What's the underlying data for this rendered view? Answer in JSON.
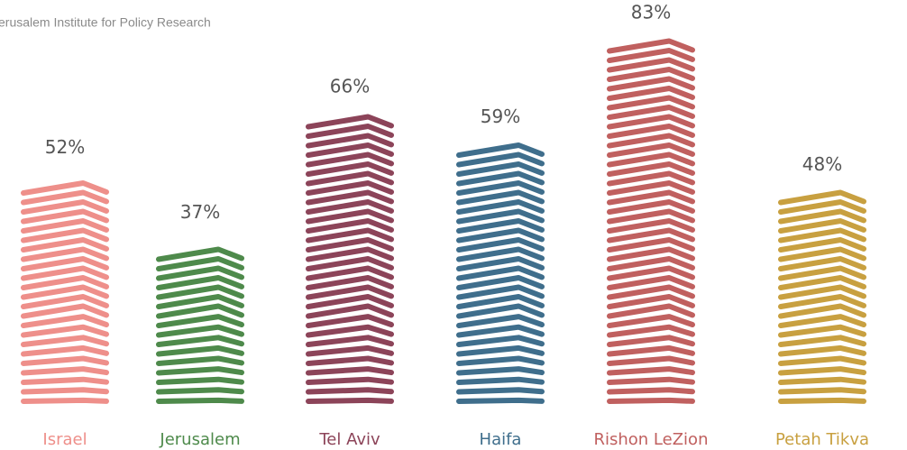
{
  "chart_data": {
    "type": "pictogram-bar",
    "subtitle": "Jerusalem Institute for Policy Research",
    "categories": [
      "Israel",
      "Jerusalem",
      "Tel Aviv",
      "Haifa",
      "Rishon LeZion",
      "Petah Tikva"
    ],
    "values": [
      52,
      37,
      66,
      59,
      83,
      48
    ],
    "value_labels": [
      "52%",
      "37%",
      "66%",
      "59%",
      "83%",
      "48%"
    ],
    "colors": [
      "#ee8f8a",
      "#4e8a4b",
      "#8c4459",
      "#3f6e8c",
      "#c0605f",
      "#c8a040"
    ]
  }
}
